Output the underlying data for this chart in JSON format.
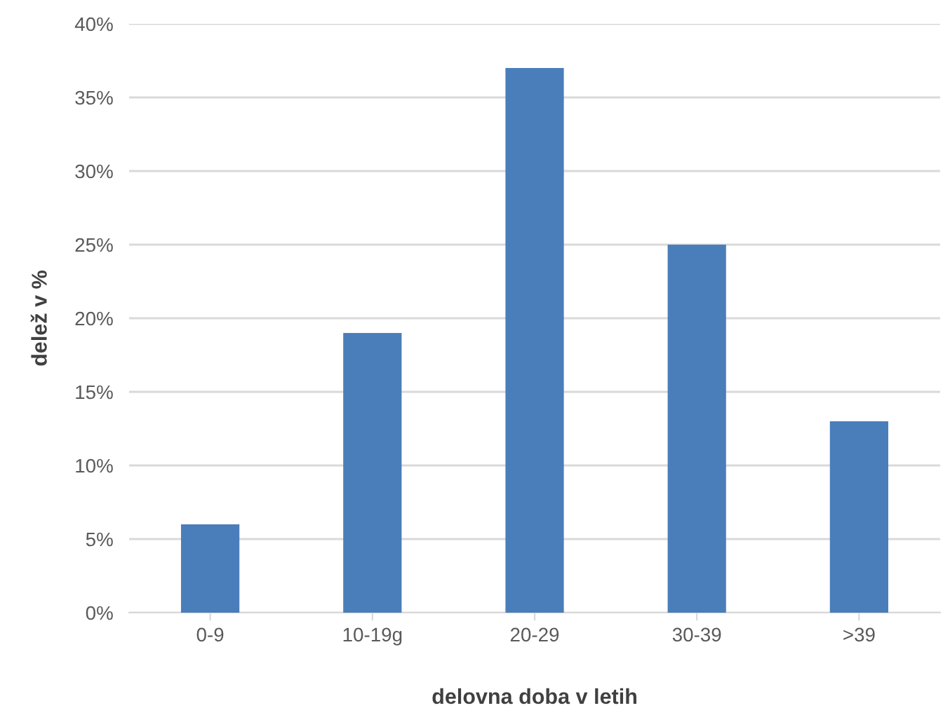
{
  "chart_data": {
    "type": "bar",
    "xlabel": "delovna doba v letih",
    "ylabel": "delež v %",
    "categories": [
      "0-9",
      "10-19g",
      "20-29",
      "30-39",
      ">39"
    ],
    "values": [
      6,
      19,
      37,
      25,
      13
    ],
    "color": "#4a7ebb",
    "ylim": [
      0,
      40
    ],
    "yticks": [
      {
        "value": 0,
        "label": "0%"
      },
      {
        "value": 5,
        "label": "5%"
      },
      {
        "value": 10,
        "label": "10%"
      },
      {
        "value": 15,
        "label": "15%"
      },
      {
        "value": 20,
        "label": "20%"
      },
      {
        "value": 25,
        "label": "25%"
      },
      {
        "value": 30,
        "label": "30%"
      },
      {
        "value": 35,
        "label": "35%"
      },
      {
        "value": 40,
        "label": "40%"
      }
    ],
    "grid": "y",
    "legend": false
  }
}
